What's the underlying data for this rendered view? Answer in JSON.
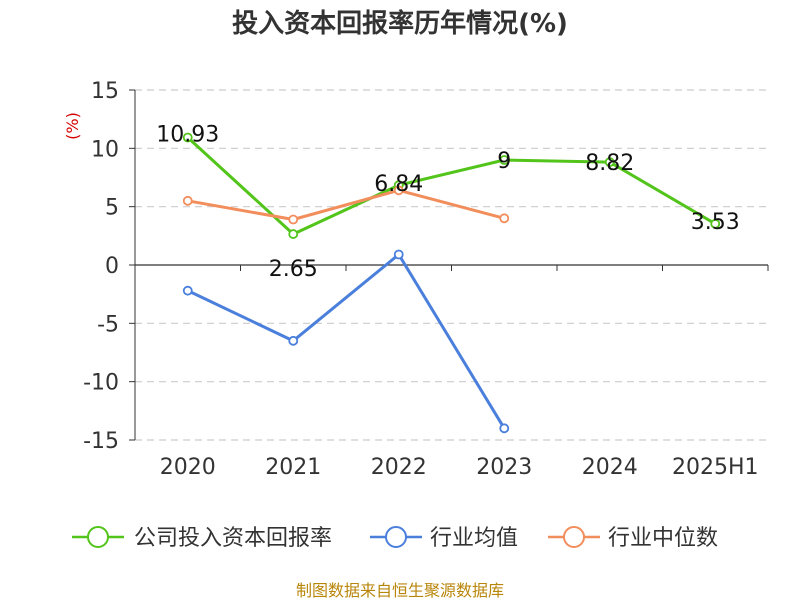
{
  "chart_data": {
    "type": "line",
    "title": "投入资本回报率历年情况(%)",
    "ylabel": "(%)",
    "categories": [
      "2020",
      "2021",
      "2022",
      "2023",
      "2024",
      "2025H1"
    ],
    "ylim": [
      -15,
      15
    ],
    "yticks": [
      15,
      10,
      5,
      0,
      -5,
      -10,
      -15
    ],
    "grid": true,
    "legend_position": "bottom",
    "series": [
      {
        "name": "公司投入资本回报率",
        "color": "#52c41a",
        "labels": true,
        "values": [
          10.93,
          2.65,
          6.84,
          9,
          8.82,
          3.53
        ]
      },
      {
        "name": "行业均值",
        "color": "#4a7fdc",
        "labels": false,
        "values": [
          -2.2,
          -6.5,
          0.9,
          -14,
          null,
          null
        ]
      },
      {
        "name": "行业中位数",
        "color": "#f28e5c",
        "labels": false,
        "values": [
          5.5,
          3.9,
          6.4,
          4.0,
          null,
          null
        ]
      }
    ]
  },
  "source": "制图数据来自恒生聚源数据库"
}
